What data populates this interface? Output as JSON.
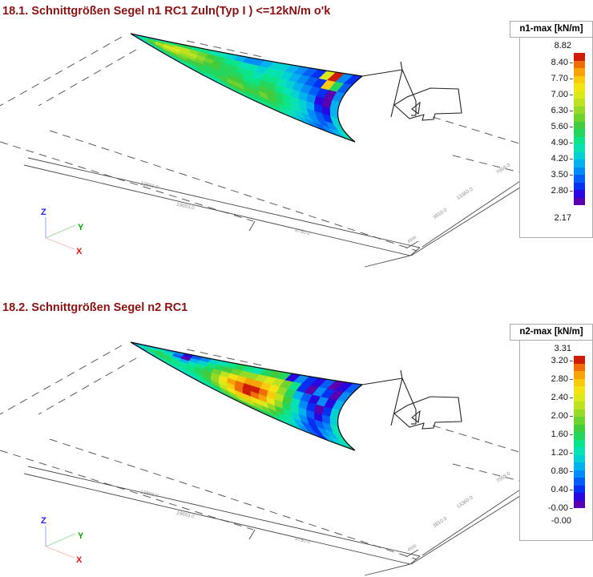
{
  "page": {
    "background": "#ffffff",
    "title_color": "#8e1111",
    "palette": [
      "#5a00b0",
      "#2a06e0",
      "#0330f2",
      "#035ef8",
      "#028cf8",
      "#02b2ee",
      "#04d2d2",
      "#07e2b2",
      "#0ce489",
      "#23d65e",
      "#43cb3e",
      "#6cd32f",
      "#95da26",
      "#bce220",
      "#dbe81a",
      "#f2e312",
      "#f9cb0c",
      "#f7a307",
      "#ef6d04",
      "#cf1c06"
    ],
    "axis_colors": {
      "x": "#ee1111",
      "y": "#00aa00",
      "z": "#1f1fff"
    }
  },
  "panels": [
    {
      "title": "18.1. Schnittgrößen Segel n1 RC1 Zuln(Typ I ) <=12kN/m o'k",
      "legend": {
        "title": "n1-max [kN/m]",
        "max_label": "8.82",
        "ticks": [
          "8.40",
          "7.70",
          "7.00",
          "6.30",
          "5.60",
          "4.90",
          "4.20",
          "3.50",
          "2.80"
        ],
        "min_label": "2.17"
      },
      "dimensions": {
        "bottom": [
          "13803.0",
          "19653.0",
          "9750.0"
        ],
        "right": [
          "7998.0",
          "13360.0",
          "3810.0"
        ],
        "corner": "4500"
      },
      "axes": {
        "x": "X",
        "y": "Y",
        "z": "Z"
      }
    },
    {
      "title": "18.2. Schnittgrößen Segel n2 RC1",
      "legend": {
        "title": "n2-max [kN/m]",
        "max_label": "3.31",
        "ticks": [
          "3.20",
          "2.80",
          "2.40",
          "2.00",
          "1.60",
          "1.20",
          "0.80",
          "0.40",
          "-0.00"
        ],
        "min_label": "-0.00"
      },
      "dimensions": {
        "bottom": [
          "13803.0",
          "19653.0",
          "9750.0"
        ],
        "right": [
          "7998.0",
          "13360.0",
          "3810.0"
        ],
        "corner": "4500"
      },
      "axes": {
        "x": "X",
        "y": "Y",
        "z": "Z"
      }
    }
  ],
  "chart_data": [
    {
      "type": "heatmap",
      "title": "18.1. Schnittgrößen Segel n1 RC1 Zuln(Typ I ) <=12kN/m o'k",
      "value_label": "n1-max [kN/m]",
      "scale_max": 8.82,
      "scale_min": 2.17,
      "scale_ticks": [
        8.4,
        7.7,
        7.0,
        6.3,
        5.6,
        4.9,
        4.2,
        3.5,
        2.8
      ],
      "legend_position": "right",
      "mesh_rows": 8,
      "mesh_cols": 26,
      "mesh_color_indices": [
        [
          4,
          5,
          6,
          7,
          8,
          9,
          9,
          8,
          8,
          7,
          7,
          6,
          5,
          4,
          4,
          5,
          6,
          6,
          5,
          4,
          3,
          2,
          14,
          19,
          4,
          2
        ],
        [
          5,
          7,
          9,
          11,
          12,
          13,
          13,
          12,
          11,
          10,
          9,
          8,
          8,
          7,
          7,
          6,
          7,
          7,
          6,
          5,
          4,
          3,
          2,
          16,
          9,
          3
        ],
        [
          6,
          8,
          11,
          13,
          14,
          14,
          13,
          13,
          12,
          11,
          10,
          9,
          9,
          8,
          8,
          7,
          8,
          8,
          7,
          6,
          5,
          4,
          3,
          2,
          0,
          4
        ],
        [
          6,
          8,
          10,
          12,
          13,
          13,
          12,
          12,
          11,
          10,
          10,
          9,
          9,
          9,
          8,
          8,
          9,
          9,
          8,
          7,
          6,
          5,
          4,
          1,
          0,
          5
        ],
        [
          5,
          7,
          9,
          10,
          11,
          11,
          11,
          10,
          10,
          9,
          9,
          9,
          10,
          10,
          9,
          9,
          10,
          10,
          9,
          8,
          7,
          6,
          5,
          2,
          1,
          5
        ],
        [
          5,
          6,
          8,
          9,
          10,
          10,
          10,
          9,
          9,
          9,
          9,
          10,
          11,
          11,
          10,
          10,
          11,
          10,
          9,
          8,
          7,
          6,
          4,
          3,
          2,
          6
        ],
        [
          4,
          5,
          6,
          7,
          8,
          8,
          8,
          8,
          9,
          8,
          8,
          9,
          10,
          10,
          9,
          9,
          9,
          9,
          8,
          7,
          6,
          5,
          4,
          3,
          4,
          6
        ],
        [
          3,
          4,
          5,
          5,
          6,
          6,
          7,
          7,
          7,
          7,
          7,
          8,
          8,
          8,
          8,
          8,
          8,
          8,
          7,
          6,
          5,
          4,
          3,
          4,
          5,
          7
        ]
      ]
    },
    {
      "type": "heatmap",
      "title": "18.2. Schnittgrößen Segel n2 RC1",
      "value_label": "n2-max [kN/m]",
      "scale_max": 3.31,
      "scale_min": -0.0,
      "scale_ticks": [
        3.2,
        2.8,
        2.4,
        2.0,
        1.6,
        1.2,
        0.8,
        0.4,
        -0.0
      ],
      "legend_position": "right",
      "mesh_rows": 8,
      "mesh_cols": 26,
      "mesh_color_indices": [
        [
          2,
          4,
          5,
          6,
          5,
          4,
          1,
          3,
          4,
          6,
          7,
          8,
          9,
          8,
          7,
          9,
          10,
          9,
          1,
          4,
          2,
          1,
          3,
          0,
          1,
          3
        ],
        [
          4,
          6,
          7,
          8,
          7,
          3,
          0,
          5,
          6,
          8,
          9,
          10,
          11,
          12,
          12,
          13,
          14,
          13,
          11,
          8,
          2,
          0,
          4,
          2,
          0,
          4
        ],
        [
          5,
          7,
          8,
          9,
          8,
          6,
          5,
          7,
          8,
          9,
          11,
          13,
          15,
          16,
          17,
          17,
          16,
          15,
          12,
          9,
          5,
          3,
          1,
          4,
          1,
          5
        ],
        [
          5,
          7,
          9,
          9,
          9,
          8,
          7,
          8,
          9,
          10,
          12,
          15,
          17,
          18,
          19,
          19,
          18,
          16,
          13,
          10,
          7,
          4,
          2,
          0,
          2,
          6
        ],
        [
          4,
          6,
          8,
          9,
          9,
          8,
          8,
          8,
          9,
          10,
          12,
          14,
          16,
          18,
          19,
          18,
          17,
          15,
          12,
          9,
          7,
          5,
          3,
          1,
          3,
          6
        ],
        [
          4,
          5,
          7,
          8,
          8,
          8,
          7,
          8,
          8,
          9,
          11,
          13,
          15,
          16,
          16,
          15,
          14,
          12,
          10,
          8,
          6,
          4,
          2,
          3,
          4,
          7
        ],
        [
          3,
          4,
          6,
          7,
          7,
          7,
          7,
          7,
          8,
          8,
          9,
          11,
          12,
          13,
          13,
          12,
          11,
          10,
          8,
          7,
          5,
          3,
          2,
          4,
          5,
          7
        ],
        [
          2,
          3,
          4,
          5,
          6,
          6,
          6,
          6,
          7,
          7,
          8,
          9,
          10,
          10,
          10,
          9,
          9,
          8,
          7,
          6,
          4,
          3,
          2,
          5,
          6,
          7
        ]
      ]
    }
  ]
}
